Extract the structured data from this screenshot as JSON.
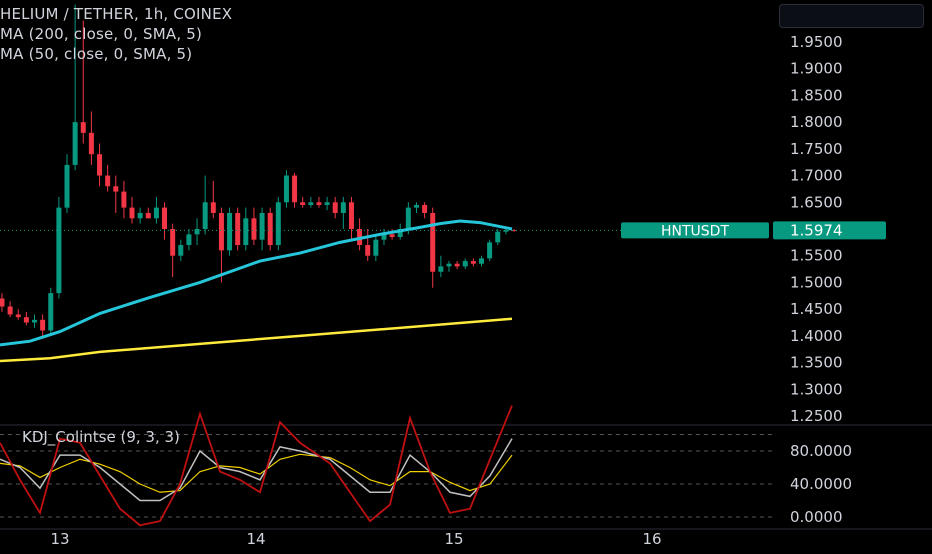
{
  "header": {
    "symbol_line": "HELIUM / TETHER, 1h, COINEX",
    "ma200_label": "MA (200, close, 0, SMA, 5)",
    "ma50_label": "MA (50, close, 0, SMA, 5)"
  },
  "kdj_label": "KDJ_Colintse (9, 3, 3)",
  "price_tag": {
    "symbol": "HNTUSDT",
    "price": "1.5974",
    "color": "#089981"
  },
  "colors": {
    "up": "#089981",
    "down": "#f23645",
    "ma50": "#26c6da",
    "ma200": "#ffeb3b",
    "k": "#c0c0c0",
    "d": "#f0d000",
    "j": "#c01010"
  },
  "chart_data": {
    "type": "candlestick",
    "price_axis": {
      "ticks": [
        "1.9500",
        "1.9000",
        "1.8500",
        "1.8000",
        "1.7500",
        "1.7000",
        "1.6500",
        "1.6000",
        "1.5500",
        "1.5000",
        "1.4500",
        "1.4000",
        "1.3500",
        "1.3000",
        "1.2500"
      ]
    },
    "time_axis": {
      "ticks": [
        "13",
        "14",
        "15",
        "16"
      ]
    },
    "indicator_axis": {
      "ticks": [
        "80.0000",
        "40.0000",
        "0.0000"
      ]
    },
    "candles": [
      [
        1.47,
        1.48,
        1.445,
        1.455
      ],
      [
        1.455,
        1.465,
        1.435,
        1.44
      ],
      [
        1.44,
        1.45,
        1.43,
        1.435
      ],
      [
        1.435,
        1.445,
        1.42,
        1.425
      ],
      [
        1.425,
        1.44,
        1.415,
        1.43
      ],
      [
        1.43,
        1.44,
        1.395,
        1.41
      ],
      [
        1.41,
        1.49,
        1.4,
        1.48
      ],
      [
        1.48,
        1.66,
        1.47,
        1.64
      ],
      [
        1.64,
        1.74,
        1.63,
        1.72
      ],
      [
        1.72,
        2.02,
        1.71,
        1.8
      ],
      [
        1.8,
        1.99,
        1.76,
        1.78
      ],
      [
        1.78,
        1.82,
        1.72,
        1.74
      ],
      [
        1.74,
        1.76,
        1.68,
        1.7
      ],
      [
        1.7,
        1.72,
        1.67,
        1.68
      ],
      [
        1.68,
        1.7,
        1.63,
        1.67
      ],
      [
        1.67,
        1.69,
        1.62,
        1.64
      ],
      [
        1.64,
        1.66,
        1.61,
        1.62
      ],
      [
        1.62,
        1.64,
        1.61,
        1.63
      ],
      [
        1.63,
        1.64,
        1.62,
        1.62
      ],
      [
        1.62,
        1.66,
        1.61,
        1.64
      ],
      [
        1.64,
        1.65,
        1.58,
        1.6
      ],
      [
        1.6,
        1.61,
        1.51,
        1.55
      ],
      [
        1.55,
        1.58,
        1.54,
        1.57
      ],
      [
        1.57,
        1.6,
        1.56,
        1.59
      ],
      [
        1.59,
        1.62,
        1.57,
        1.6
      ],
      [
        1.6,
        1.7,
        1.59,
        1.65
      ],
      [
        1.65,
        1.69,
        1.62,
        1.63
      ],
      [
        1.63,
        1.64,
        1.5,
        1.56
      ],
      [
        1.56,
        1.64,
        1.55,
        1.63
      ],
      [
        1.63,
        1.64,
        1.56,
        1.57
      ],
      [
        1.57,
        1.64,
        1.56,
        1.62
      ],
      [
        1.62,
        1.64,
        1.57,
        1.58
      ],
      [
        1.58,
        1.64,
        1.56,
        1.63
      ],
      [
        1.63,
        1.64,
        1.56,
        1.57
      ],
      [
        1.57,
        1.66,
        1.56,
        1.65
      ],
      [
        1.65,
        1.71,
        1.64,
        1.7
      ],
      [
        1.7,
        1.705,
        1.64,
        1.65
      ],
      [
        1.65,
        1.66,
        1.64,
        1.645
      ],
      [
        1.645,
        1.66,
        1.64,
        1.65
      ],
      [
        1.65,
        1.66,
        1.64,
        1.645
      ],
      [
        1.645,
        1.66,
        1.635,
        1.65
      ],
      [
        1.65,
        1.66,
        1.62,
        1.63
      ],
      [
        1.63,
        1.66,
        1.6,
        1.65
      ],
      [
        1.65,
        1.66,
        1.58,
        1.6
      ],
      [
        1.6,
        1.62,
        1.56,
        1.57
      ],
      [
        1.57,
        1.6,
        1.54,
        1.55
      ],
      [
        1.55,
        1.59,
        1.54,
        1.58
      ],
      [
        1.58,
        1.6,
        1.57,
        1.59
      ],
      [
        1.59,
        1.6,
        1.58,
        1.585
      ],
      [
        1.585,
        1.61,
        1.58,
        1.6
      ],
      [
        1.6,
        1.65,
        1.59,
        1.64
      ],
      [
        1.64,
        1.65,
        1.63,
        1.645
      ],
      [
        1.645,
        1.65,
        1.62,
        1.63
      ],
      [
        1.63,
        1.64,
        1.49,
        1.52
      ],
      [
        1.52,
        1.55,
        1.51,
        1.53
      ],
      [
        1.53,
        1.54,
        1.52,
        1.535
      ],
      [
        1.535,
        1.54,
        1.525,
        1.53
      ],
      [
        1.53,
        1.545,
        1.525,
        1.54
      ],
      [
        1.54,
        1.545,
        1.53,
        1.535
      ],
      [
        1.535,
        1.55,
        1.53,
        1.545
      ],
      [
        1.545,
        1.58,
        1.54,
        1.575
      ],
      [
        1.575,
        1.6,
        1.57,
        1.595
      ],
      [
        1.595,
        1.6,
        1.59,
        1.598
      ],
      [
        1.598,
        1.6,
        1.595,
        1.5974
      ]
    ],
    "ma50": [
      [
        0,
        1.383
      ],
      [
        30,
        1.39
      ],
      [
        60,
        1.408
      ],
      [
        100,
        1.442
      ],
      [
        150,
        1.472
      ],
      [
        200,
        1.5
      ],
      [
        260,
        1.54
      ],
      [
        300,
        1.555
      ],
      [
        340,
        1.575
      ],
      [
        380,
        1.59
      ],
      [
        420,
        1.603
      ],
      [
        440,
        1.61
      ],
      [
        460,
        1.615
      ],
      [
        480,
        1.612
      ],
      [
        512,
        1.6
      ]
    ],
    "ma200": [
      [
        0,
        1.353
      ],
      [
        50,
        1.358
      ],
      [
        100,
        1.37
      ],
      [
        200,
        1.385
      ],
      [
        300,
        1.4
      ],
      [
        400,
        1.415
      ],
      [
        512,
        1.432
      ]
    ],
    "kdj": {
      "k": [
        [
          0,
          70
        ],
        [
          20,
          60
        ],
        [
          40,
          35
        ],
        [
          60,
          75
        ],
        [
          80,
          75
        ],
        [
          100,
          60
        ],
        [
          120,
          40
        ],
        [
          140,
          20
        ],
        [
          160,
          20
        ],
        [
          180,
          35
        ],
        [
          200,
          80
        ],
        [
          220,
          60
        ],
        [
          240,
          55
        ],
        [
          260,
          45
        ],
        [
          280,
          85
        ],
        [
          300,
          80
        ],
        [
          330,
          70
        ],
        [
          350,
          50
        ],
        [
          370,
          30
        ],
        [
          390,
          30
        ],
        [
          410,
          75
        ],
        [
          430,
          55
        ],
        [
          450,
          30
        ],
        [
          470,
          25
        ],
        [
          490,
          50
        ],
        [
          512,
          95
        ]
      ],
      "d": [
        [
          0,
          65
        ],
        [
          20,
          62
        ],
        [
          40,
          48
        ],
        [
          60,
          60
        ],
        [
          80,
          70
        ],
        [
          100,
          64
        ],
        [
          120,
          55
        ],
        [
          140,
          40
        ],
        [
          160,
          30
        ],
        [
          180,
          32
        ],
        [
          200,
          55
        ],
        [
          220,
          62
        ],
        [
          240,
          60
        ],
        [
          260,
          52
        ],
        [
          280,
          70
        ],
        [
          300,
          76
        ],
        [
          330,
          72
        ],
        [
          350,
          60
        ],
        [
          370,
          45
        ],
        [
          390,
          38
        ],
        [
          410,
          55
        ],
        [
          430,
          55
        ],
        [
          450,
          42
        ],
        [
          470,
          32
        ],
        [
          490,
          40
        ],
        [
          512,
          75
        ]
      ],
      "j": [
        [
          0,
          90
        ],
        [
          20,
          45
        ],
        [
          40,
          5
        ],
        [
          60,
          95
        ],
        [
          80,
          90
        ],
        [
          100,
          50
        ],
        [
          120,
          10
        ],
        [
          140,
          -10
        ],
        [
          160,
          -5
        ],
        [
          180,
          40
        ],
        [
          200,
          125
        ],
        [
          220,
          55
        ],
        [
          240,
          45
        ],
        [
          260,
          30
        ],
        [
          280,
          115
        ],
        [
          300,
          90
        ],
        [
          330,
          65
        ],
        [
          350,
          30
        ],
        [
          370,
          -5
        ],
        [
          390,
          15
        ],
        [
          410,
          120
        ],
        [
          430,
          55
        ],
        [
          450,
          5
        ],
        [
          470,
          10
        ],
        [
          490,
          70
        ],
        [
          512,
          135
        ]
      ]
    }
  }
}
